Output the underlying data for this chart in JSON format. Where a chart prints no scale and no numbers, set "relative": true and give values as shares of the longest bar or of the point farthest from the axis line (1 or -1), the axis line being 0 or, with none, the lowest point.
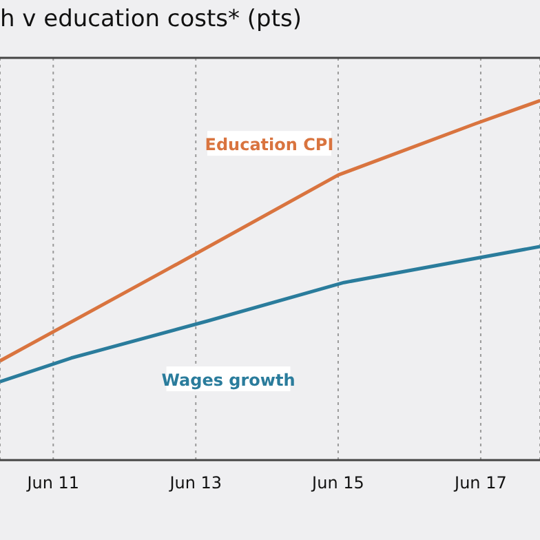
{
  "chart_data": {
    "type": "line",
    "title": "h v education costs* (pts)",
    "relative": true,
    "xlim": [
      "2010-09",
      "2018-04"
    ],
    "xticks": [
      {
        "value": "2011-06",
        "label": "Jun 11"
      },
      {
        "value": "2013-06",
        "label": "Jun 13"
      },
      {
        "value": "2015-06",
        "label": "Jun 15"
      },
      {
        "value": "2017-06",
        "label": "Jun 17"
      }
    ],
    "grid": "x",
    "marker": "none",
    "line_style": "solid",
    "series": [
      {
        "name": "Education CPI",
        "color": "#d9743f",
        "x": [
          "2010-09",
          "2013-01",
          "2015-06",
          "2017-05",
          "2018-04"
        ],
        "values": [
          0.276,
          0.529,
          0.793,
          0.935,
          1
        ]
      },
      {
        "name": "Wages growth",
        "color": "#2a7c9c",
        "x": [
          "2010-09",
          "2011-09",
          "2013-08",
          "2015-07",
          "2018-04"
        ],
        "values": [
          0.218,
          0.284,
          0.387,
          0.494,
          0.594
        ]
      }
    ]
  }
}
